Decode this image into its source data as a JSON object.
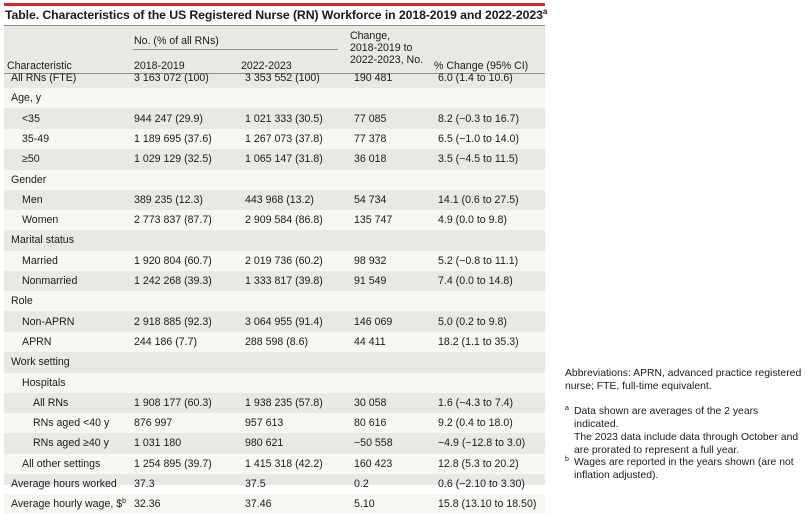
{
  "title": "Table. Characteristics of the US Registered Nurse (RN) Workforce in 2018-2019 and 2022-2023",
  "title_marker": "a",
  "colors": {
    "accent_red": "#d6252b",
    "table_bg": "#e9e9e3",
    "row_alt": "#f6f6f3",
    "rule": "#8c8c8c"
  },
  "header": {
    "characteristic": "Characteristic",
    "group": "No. (% of all RNs)",
    "y1": "2018-2019",
    "y2": "2022-2023",
    "change_line1": "Change,",
    "change_line2": "2018-2019 to",
    "change_line3": "2022-2023, No.",
    "pct": "% Change (95% CI)"
  },
  "rows": [
    {
      "label": "All RNs (FTE)",
      "c1": "3 163 072 (100)",
      "c2": "3 353 552 (100)",
      "c3": "190 481",
      "c4": "6.0 (1.4 to 10.6)",
      "indent": 0
    },
    {
      "label": "Age, y",
      "c1": "",
      "c2": "",
      "c3": "",
      "c4": "",
      "indent": 0
    },
    {
      "label": "<35",
      "c1": "944 247 (29.9)",
      "c2": "1 021 333 (30.5)",
      "c3": "77 085",
      "c4": "8.2 (−0.3 to 16.7)",
      "indent": 1
    },
    {
      "label": "35-49",
      "c1": "1 189 695 (37.6)",
      "c2": "1 267 073 (37.8)",
      "c3": "77 378",
      "c4": "6.5 (−1.0 to 14.0)",
      "indent": 1
    },
    {
      "label": "≥50",
      "c1": "1 029 129 (32.5)",
      "c2": "1 065 147 (31.8)",
      "c3": "36 018",
      "c4": "3.5 (−4.5 to 11.5)",
      "indent": 1
    },
    {
      "label": "Gender",
      "c1": "",
      "c2": "",
      "c3": "",
      "c4": "",
      "indent": 0
    },
    {
      "label": "Men",
      "c1": "389 235 (12.3)",
      "c2": "443 968 (13.2)",
      "c3": "54 734",
      "c4": "14.1 (0.6 to 27.5)",
      "indent": 1
    },
    {
      "label": "Women",
      "c1": "2 773 837 (87.7)",
      "c2": "2 909 584 (86.8)",
      "c3": "135 747",
      "c4": "4.9 (0.0 to 9.8)",
      "indent": 1
    },
    {
      "label": "Marital status",
      "c1": "",
      "c2": "",
      "c3": "",
      "c4": "",
      "indent": 0
    },
    {
      "label": "Married",
      "c1": "1 920 804 (60.7)",
      "c2": "2 019 736 (60.2)",
      "c3": "98 932",
      "c4": "5.2 (−0.8 to 11.1)",
      "indent": 1
    },
    {
      "label": "Nonmarried",
      "c1": "1 242 268 (39.3)",
      "c2": "1 333 817 (39.8)",
      "c3": "91 549",
      "c4": "7.4 (0.0 to 14.8)",
      "indent": 1
    },
    {
      "label": "Role",
      "c1": "",
      "c2": "",
      "c3": "",
      "c4": "",
      "indent": 0
    },
    {
      "label": "Non-APRN",
      "c1": "2 918 885 (92.3)",
      "c2": "3 064 955 (91.4)",
      "c3": "146 069",
      "c4": "5.0 (0.2 to 9.8)",
      "indent": 1
    },
    {
      "label": "APRN",
      "c1": "244 186 (7.7)",
      "c2": "288 598 (8.6)",
      "c3": "44 411",
      "c4": "18.2 (1.1 to 35.3)",
      "indent": 1
    },
    {
      "label": "Work setting",
      "c1": "",
      "c2": "",
      "c3": "",
      "c4": "",
      "indent": 0
    },
    {
      "label": "Hospitals",
      "c1": "",
      "c2": "",
      "c3": "",
      "c4": "",
      "indent": 1
    },
    {
      "label": "All RNs",
      "c1": "1 908 177 (60.3)",
      "c2": "1 938 235 (57.8)",
      "c3": "30 058",
      "c4": "1.6 (−4.3 to 7.4)",
      "indent": 2
    },
    {
      "label": "RNs aged <40 y",
      "c1": "876 997",
      "c2": "957 613",
      "c3": "80 616",
      "c4": "9.2 (0.4 to 18.0)",
      "indent": 2
    },
    {
      "label": "RNs aged ≥40 y",
      "c1": "1 031 180",
      "c2": "980 621",
      "c3": "−50 558",
      "c4": "−4.9 (−12.8 to 3.0)",
      "indent": 2
    },
    {
      "label": "All other settings",
      "c1": "1 254 895 (39.7)",
      "c2": "1 415 318 (42.2)",
      "c3": "160 423",
      "c4": "12.8 (5.3 to 20.2)",
      "indent": 1
    },
    {
      "label": "Average hours worked",
      "c1": "37.3",
      "c2": "37.5",
      "c3": "0.2",
      "c4": "0.6 (−2.10 to 3.30)",
      "indent": 0
    },
    {
      "label": "Average hourly wage, $",
      "label_marker": "b",
      "c1": "32.36",
      "c2": "37.46",
      "c3": "5.10",
      "c4": "15.8 (13.10 to 18.50)",
      "indent": 0
    }
  ],
  "notes": {
    "abbreviations_line1": "Abbreviations: APRN, advanced practice registered",
    "abbreviations_line2": "nurse; FTE, full-time equivalent.",
    "a_marker": "a",
    "a_line1": "Data shown are averages of the 2 years indicated.",
    "a_line2": "The 2023 data include data through October and",
    "a_line3": "are prorated to represent a full year.",
    "b_marker": "b",
    "b_line1": "Wages are reported in the years shown (are not",
    "b_line2": "inflation adjusted)."
  }
}
